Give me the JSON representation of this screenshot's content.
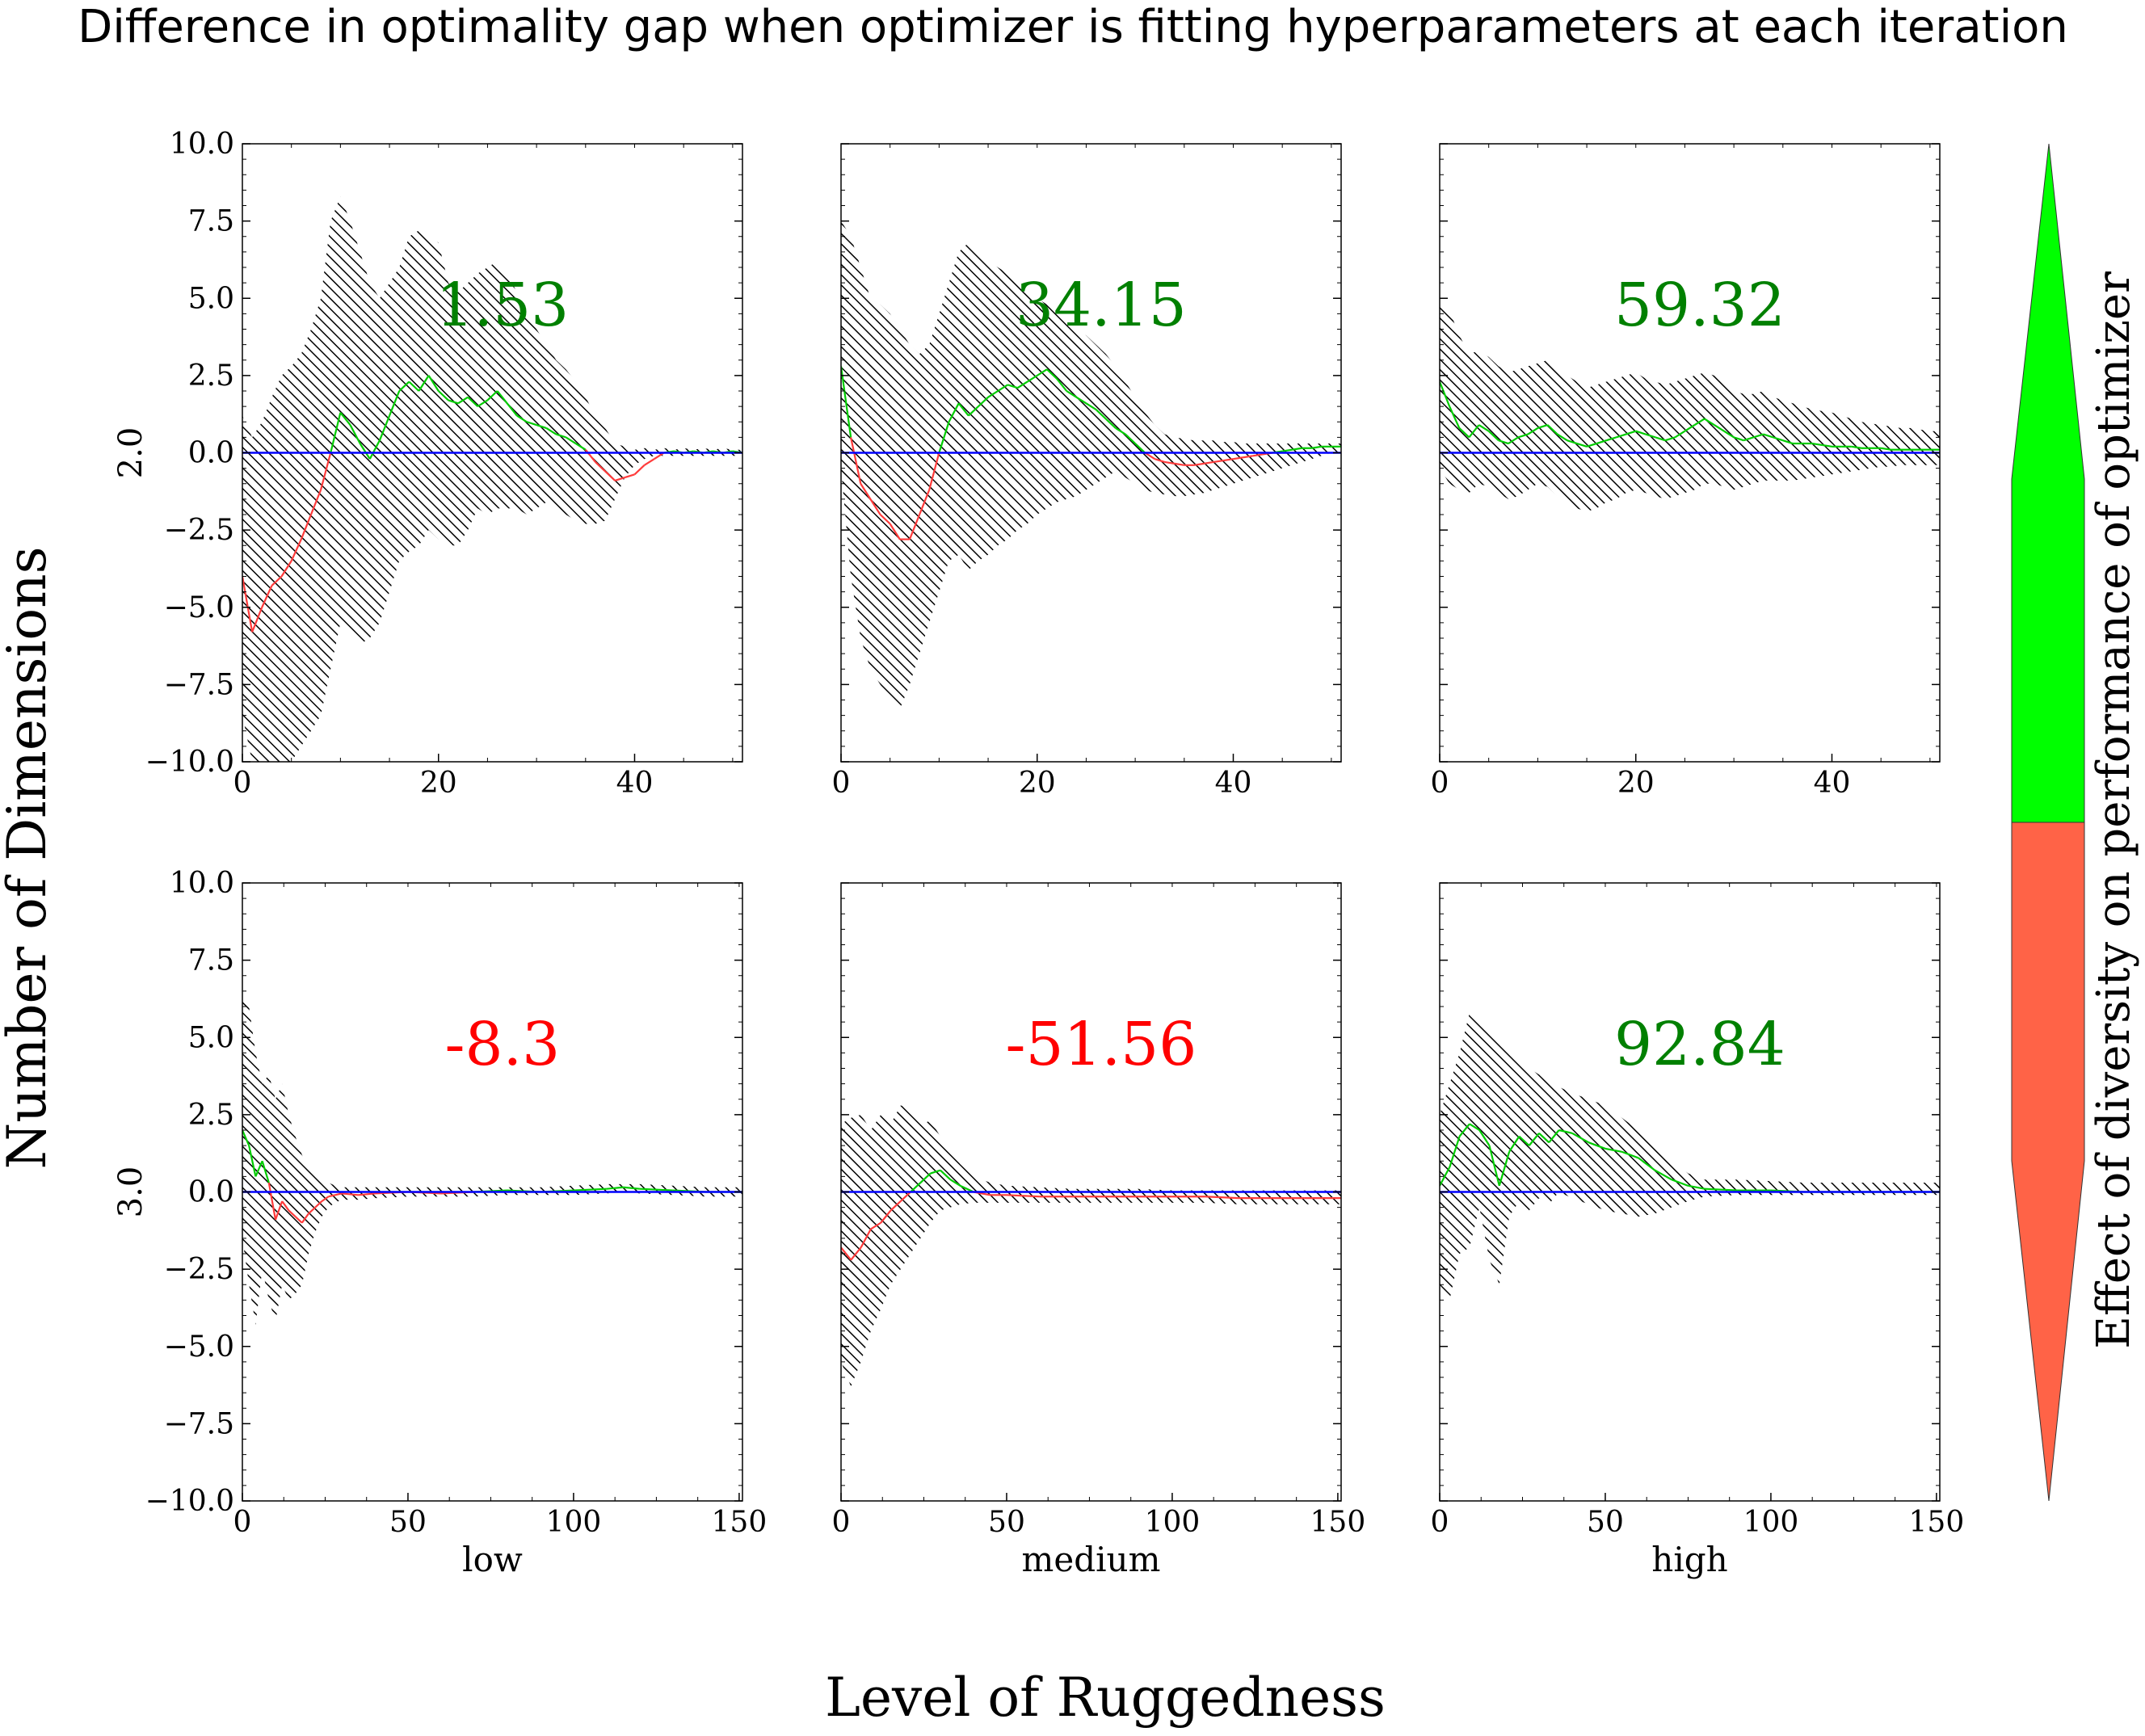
{
  "title": "Difference in optimality gap when optimizer is fitting hyperparameters at each iteration",
  "row_axis_title": "Number of Dimensions",
  "col_axis_title": "Level of Ruggedness",
  "colorbar_label": "Effect of diversity on performance of optimizer",
  "colors": {
    "positive": "#00ff00",
    "negative": "#ff6347",
    "zero_line": "#0000ff",
    "line_positive": "#00cc00",
    "line_negative": "#ff3b3b",
    "label_positive": "#008000",
    "label_negative": "#ff0000",
    "hatch": "#000000"
  },
  "chart_data": [
    {
      "type": "area",
      "panel": "low / 2.0",
      "row_label": "2.0",
      "col_label": "",
      "xlim": [
        0,
        51
      ],
      "ylim": [
        -10,
        10
      ],
      "xticks": [
        "0",
        "20",
        "40"
      ],
      "yticks": [
        "−10.0",
        "−7.5",
        "−5.0",
        "−2.5",
        "0.0",
        "2.5",
        "5.0",
        "7.5",
        "10.0"
      ],
      "annotation": "1.53",
      "annotation_sign": "positive",
      "x": [
        0,
        1,
        2,
        3,
        4,
        5,
        6,
        7,
        8,
        9,
        10,
        11,
        12,
        13,
        14,
        15,
        16,
        17,
        18,
        19,
        20,
        21,
        22,
        23,
        24,
        25,
        26,
        27,
        28,
        29,
        30,
        31,
        32,
        33,
        34,
        35,
        36,
        37,
        38,
        39,
        40,
        41,
        42,
        43,
        44,
        45,
        46,
        47,
        48,
        49,
        50,
        51
      ],
      "mean": [
        -4.0,
        -5.8,
        -5.0,
        -4.3,
        -4.0,
        -3.5,
        -2.8,
        -2.0,
        -1.2,
        0.0,
        1.3,
        0.9,
        0.3,
        -0.2,
        0.4,
        1.2,
        2.0,
        2.3,
        2.0,
        2.5,
        2.0,
        1.7,
        1.6,
        1.8,
        1.5,
        1.7,
        2.0,
        1.6,
        1.2,
        1.0,
        0.9,
        0.8,
        0.6,
        0.5,
        0.3,
        0.1,
        -0.3,
        -0.6,
        -0.9,
        -0.8,
        -0.7,
        -0.4,
        -0.2,
        0.0,
        0.05,
        0.0,
        0.05,
        0.0,
        0.05,
        0.0,
        0.05,
        0.0
      ],
      "upper": [
        1.2,
        0.5,
        1.0,
        1.8,
        2.5,
        2.8,
        3.2,
        4.0,
        5.0,
        7.5,
        8.3,
        7.5,
        6.5,
        5.5,
        5.0,
        5.5,
        6.0,
        7.0,
        7.2,
        7.0,
        6.8,
        5.5,
        5.2,
        5.5,
        5.8,
        6.0,
        6.2,
        5.8,
        5.2,
        4.5,
        4.0,
        3.5,
        3.0,
        2.7,
        2.3,
        1.8,
        1.2,
        0.8,
        0.3,
        0.2,
        0.1,
        0.15,
        0.1,
        0.15,
        0.1,
        0.15,
        0.1,
        0.15,
        0.1,
        0.15,
        0.1,
        0.1
      ],
      "lower": [
        -8.5,
        -10.0,
        -10.0,
        -10.0,
        -10.0,
        -10.0,
        -9.5,
        -9.0,
        -8.5,
        -7.0,
        -5.5,
        -5.8,
        -6.2,
        -6.0,
        -5.5,
        -4.5,
        -3.5,
        -3.2,
        -3.0,
        -2.5,
        -2.8,
        -3.0,
        -3.0,
        -2.5,
        -1.8,
        -2.0,
        -1.8,
        -1.8,
        -1.8,
        -2.0,
        -1.8,
        -1.6,
        -1.8,
        -2.0,
        -2.2,
        -2.3,
        -2.3,
        -2.2,
        -1.5,
        -0.8,
        -0.4,
        -0.2,
        -0.1,
        -0.1,
        -0.1,
        -0.1,
        -0.1,
        -0.1,
        -0.1,
        -0.1,
        -0.1,
        -0.1
      ]
    },
    {
      "type": "area",
      "panel": "medium / 2.0",
      "row_label": "",
      "col_label": "",
      "xlim": [
        0,
        51
      ],
      "ylim": [
        -10,
        10
      ],
      "xticks": [
        "0",
        "20",
        "40"
      ],
      "yticks": [],
      "annotation": "34.15",
      "annotation_sign": "positive",
      "x": [
        0,
        1,
        2,
        3,
        4,
        5,
        6,
        7,
        8,
        9,
        10,
        11,
        12,
        13,
        14,
        15,
        16,
        17,
        18,
        19,
        20,
        21,
        22,
        23,
        24,
        25,
        26,
        27,
        28,
        29,
        30,
        31,
        32,
        33,
        34,
        35,
        36,
        37,
        38,
        39,
        40,
        41,
        42,
        43,
        44,
        45,
        46,
        47,
        48,
        49,
        50,
        51
      ],
      "mean": [
        2.8,
        0.5,
        -1.0,
        -1.5,
        -2.0,
        -2.3,
        -2.8,
        -2.8,
        -2.0,
        -1.2,
        0.0,
        1.0,
        1.6,
        1.2,
        1.5,
        1.8,
        2.0,
        2.2,
        2.1,
        2.3,
        2.5,
        2.7,
        2.4,
        2.0,
        1.8,
        1.6,
        1.4,
        1.1,
        0.8,
        0.6,
        0.3,
        0.0,
        -0.2,
        -0.3,
        -0.35,
        -0.4,
        -0.4,
        -0.35,
        -0.3,
        -0.25,
        -0.2,
        -0.15,
        -0.1,
        -0.05,
        0.0,
        0.05,
        0.1,
        0.15,
        0.15,
        0.2,
        0.2,
        0.2
      ],
      "upper": [
        7.5,
        7.0,
        6.0,
        5.0,
        4.8,
        4.5,
        4.0,
        3.5,
        3.2,
        3.5,
        4.5,
        5.5,
        6.5,
        6.8,
        6.5,
        6.2,
        6.0,
        5.8,
        5.5,
        5.3,
        5.0,
        4.8,
        4.6,
        4.3,
        4.0,
        3.8,
        3.5,
        3.2,
        2.8,
        2.3,
        1.8,
        1.3,
        0.9,
        0.6,
        0.5,
        0.45,
        0.4,
        0.4,
        0.4,
        0.35,
        0.35,
        0.3,
        0.3,
        0.3,
        0.3,
        0.3,
        0.3,
        0.3,
        0.3,
        0.3,
        0.3,
        0.3
      ],
      "lower": [
        -0.5,
        -4.0,
        -6.0,
        -7.0,
        -7.5,
        -8.0,
        -8.3,
        -7.5,
        -6.5,
        -5.5,
        -4.5,
        -3.5,
        -3.3,
        -3.8,
        -3.5,
        -3.3,
        -3.0,
        -2.8,
        -2.5,
        -2.3,
        -2.0,
        -1.8,
        -1.6,
        -1.5,
        -1.4,
        -1.2,
        -1.0,
        -0.8,
        -0.6,
        -0.8,
        -1.0,
        -1.2,
        -1.3,
        -1.35,
        -1.4,
        -1.4,
        -1.35,
        -1.3,
        -1.2,
        -1.1,
        -1.0,
        -0.9,
        -0.8,
        -0.7,
        -0.6,
        -0.5,
        -0.4,
        -0.3,
        -0.2,
        -0.1,
        0.0,
        0.0
      ]
    },
    {
      "type": "area",
      "panel": "high / 2.0",
      "row_label": "",
      "col_label": "",
      "xlim": [
        0,
        51
      ],
      "ylim": [
        -10,
        10
      ],
      "xticks": [
        "0",
        "20",
        "40"
      ],
      "yticks": [],
      "annotation": "59.32",
      "annotation_sign": "positive",
      "x": [
        0,
        1,
        2,
        3,
        4,
        5,
        6,
        7,
        8,
        9,
        10,
        11,
        12,
        13,
        14,
        15,
        16,
        17,
        18,
        19,
        20,
        21,
        22,
        23,
        24,
        25,
        26,
        27,
        28,
        29,
        30,
        31,
        32,
        33,
        34,
        35,
        36,
        37,
        38,
        39,
        40,
        41,
        42,
        43,
        44,
        45,
        46,
        47,
        48,
        49,
        50,
        51
      ],
      "mean": [
        2.3,
        1.5,
        0.8,
        0.5,
        0.9,
        0.7,
        0.4,
        0.3,
        0.5,
        0.6,
        0.8,
        0.9,
        0.6,
        0.4,
        0.3,
        0.2,
        0.3,
        0.4,
        0.5,
        0.6,
        0.7,
        0.6,
        0.5,
        0.4,
        0.5,
        0.7,
        0.9,
        1.1,
        0.9,
        0.7,
        0.5,
        0.4,
        0.5,
        0.6,
        0.5,
        0.4,
        0.3,
        0.3,
        0.3,
        0.25,
        0.2,
        0.2,
        0.2,
        0.15,
        0.15,
        0.15,
        0.1,
        0.1,
        0.1,
        0.1,
        0.1,
        0.1
      ],
      "upper": [
        4.8,
        4.6,
        3.8,
        3.2,
        3.3,
        3.1,
        2.8,
        2.6,
        2.7,
        2.8,
        2.9,
        3.0,
        2.8,
        2.5,
        2.3,
        2.1,
        2.2,
        2.3,
        2.4,
        2.5,
        2.6,
        2.4,
        2.3,
        2.2,
        2.3,
        2.4,
        2.5,
        2.6,
        2.5,
        2.3,
        2.0,
        1.9,
        1.9,
        2.0,
        1.8,
        1.7,
        1.6,
        1.5,
        1.4,
        1.35,
        1.3,
        1.2,
        1.1,
        1.0,
        0.95,
        0.9,
        0.85,
        0.8,
        0.8,
        0.75,
        0.7,
        0.7
      ],
      "lower": [
        -0.5,
        -1.0,
        -1.2,
        -1.3,
        -1.0,
        -1.1,
        -1.3,
        -1.5,
        -1.4,
        -1.2,
        -1.0,
        -1.1,
        -1.4,
        -1.6,
        -1.8,
        -1.9,
        -1.8,
        -1.6,
        -1.5,
        -1.3,
        -1.2,
        -1.3,
        -1.4,
        -1.5,
        -1.4,
        -1.3,
        -1.2,
        -1.0,
        -1.0,
        -1.1,
        -1.2,
        -1.1,
        -1.0,
        -0.9,
        -0.9,
        -0.9,
        -0.9,
        -0.85,
        -0.8,
        -0.75,
        -0.7,
        -0.65,
        -0.6,
        -0.55,
        -0.5,
        -0.45,
        -0.45,
        -0.4,
        -0.4,
        -0.4,
        -0.4,
        -0.4
      ]
    },
    {
      "type": "area",
      "panel": "low / 3.0",
      "row_label": "3.0",
      "col_label": "low",
      "xlim": [
        0,
        151
      ],
      "ylim": [
        -10,
        10
      ],
      "xticks": [
        "0",
        "50",
        "100",
        "150"
      ],
      "yticks": [
        "−10.0",
        "−7.5",
        "−5.0",
        "−2.5",
        "0.0",
        "2.5",
        "5.0",
        "7.5",
        "10.0"
      ],
      "annotation": "-8.3",
      "annotation_sign": "negative",
      "x": [
        0,
        2,
        4,
        6,
        8,
        10,
        12,
        14,
        16,
        18,
        20,
        22,
        24,
        26,
        28,
        30,
        35,
        40,
        50,
        60,
        70,
        80,
        90,
        100,
        110,
        115,
        120,
        130,
        140,
        151
      ],
      "mean": [
        2.0,
        1.5,
        0.5,
        1.0,
        0.3,
        -0.9,
        -0.3,
        -0.6,
        -0.8,
        -1.0,
        -0.7,
        -0.5,
        -0.3,
        -0.15,
        -0.1,
        -0.05,
        -0.1,
        -0.05,
        0.0,
        -0.05,
        0.0,
        0.05,
        0.0,
        0.05,
        0.1,
        0.15,
        0.1,
        0.05,
        0.0,
        0.0
      ],
      "upper": [
        6.3,
        6.0,
        4.5,
        3.5,
        3.8,
        3.0,
        3.5,
        2.5,
        1.8,
        1.2,
        0.8,
        0.6,
        0.4,
        0.3,
        0.2,
        0.15,
        0.15,
        0.15,
        0.15,
        0.15,
        0.15,
        0.15,
        0.15,
        0.2,
        0.25,
        0.25,
        0.25,
        0.2,
        0.15,
        0.15
      ],
      "lower": [
        -1.5,
        -3.0,
        -4.3,
        -2.5,
        -3.5,
        -4.2,
        -3.0,
        -3.5,
        -3.3,
        -3.0,
        -2.0,
        -1.3,
        -0.8,
        -0.5,
        -0.35,
        -0.25,
        -0.25,
        -0.2,
        -0.15,
        -0.15,
        -0.15,
        -0.1,
        -0.1,
        -0.1,
        -0.05,
        0.0,
        -0.05,
        -0.1,
        -0.15,
        -0.15
      ]
    },
    {
      "type": "area",
      "panel": "medium / 3.0",
      "row_label": "",
      "col_label": "medium",
      "xlim": [
        0,
        151
      ],
      "ylim": [
        -10,
        10
      ],
      "xticks": [
        "0",
        "50",
        "100",
        "150"
      ],
      "yticks": [],
      "annotation": "-51.56",
      "annotation_sign": "negative",
      "x": [
        0,
        3,
        6,
        9,
        12,
        15,
        18,
        21,
        24,
        27,
        30,
        33,
        36,
        40,
        45,
        50,
        60,
        70,
        80,
        90,
        100,
        110,
        120,
        130,
        140,
        151
      ],
      "mean": [
        -1.8,
        -2.2,
        -1.8,
        -1.2,
        -1.0,
        -0.6,
        -0.3,
        0.0,
        0.3,
        0.6,
        0.7,
        0.4,
        0.2,
        0.0,
        -0.1,
        -0.1,
        -0.15,
        -0.15,
        -0.15,
        -0.15,
        -0.15,
        -0.15,
        -0.2,
        -0.2,
        -0.2,
        -0.2
      ],
      "upper": [
        2.2,
        2.4,
        2.5,
        2.0,
        2.5,
        2.2,
        2.8,
        2.7,
        2.2,
        2.3,
        1.8,
        1.4,
        0.9,
        0.5,
        0.3,
        0.2,
        0.15,
        0.1,
        0.1,
        0.1,
        0.05,
        0.05,
        0.05,
        0.05,
        0.05,
        0.05
      ],
      "lower": [
        -5.5,
        -6.3,
        -5.5,
        -4.5,
        -3.8,
        -3.0,
        -2.5,
        -2.0,
        -1.5,
        -1.0,
        -0.6,
        -0.5,
        -0.4,
        -0.35,
        -0.35,
        -0.35,
        -0.35,
        -0.35,
        -0.35,
        -0.35,
        -0.35,
        -0.35,
        -0.4,
        -0.4,
        -0.4,
        -0.4
      ]
    },
    {
      "type": "area",
      "panel": "high / 3.0",
      "row_label": "",
      "col_label": "high",
      "xlim": [
        0,
        151
      ],
      "ylim": [
        -10,
        10
      ],
      "xticks": [
        "0",
        "50",
        "100",
        "150"
      ],
      "yticks": [],
      "annotation": "92.84",
      "annotation_sign": "positive",
      "x": [
        0,
        3,
        6,
        9,
        12,
        15,
        18,
        21,
        24,
        27,
        30,
        33,
        36,
        40,
        45,
        50,
        55,
        60,
        65,
        70,
        75,
        80,
        90,
        100,
        110,
        120,
        130,
        140,
        151
      ],
      "mean": [
        0.2,
        0.8,
        1.8,
        2.2,
        2.0,
        1.5,
        0.2,
        1.3,
        1.8,
        1.5,
        1.9,
        1.6,
        2.0,
        1.9,
        1.6,
        1.4,
        1.3,
        1.1,
        0.7,
        0.4,
        0.2,
        0.1,
        0.05,
        0.05,
        0.0,
        0.0,
        0.0,
        0.0,
        0.0
      ],
      "upper": [
        2.5,
        3.5,
        4.5,
        5.8,
        5.6,
        5.2,
        4.8,
        4.5,
        4.3,
        4.0,
        3.8,
        3.5,
        3.4,
        3.2,
        3.0,
        2.8,
        2.4,
        2.0,
        1.5,
        1.0,
        0.6,
        0.4,
        0.4,
        0.35,
        0.3,
        0.3,
        0.3,
        0.3,
        0.3
      ],
      "lower": [
        -3.0,
        -3.5,
        -2.0,
        -1.8,
        -0.5,
        -2.2,
        -3.0,
        -0.8,
        -0.3,
        -0.6,
        -0.2,
        -0.4,
        0.0,
        -0.2,
        -0.4,
        -0.6,
        -0.7,
        -0.8,
        -0.7,
        -0.5,
        -0.3,
        -0.15,
        -0.1,
        -0.1,
        -0.1,
        -0.1,
        -0.1,
        -0.1,
        -0.1
      ]
    }
  ]
}
